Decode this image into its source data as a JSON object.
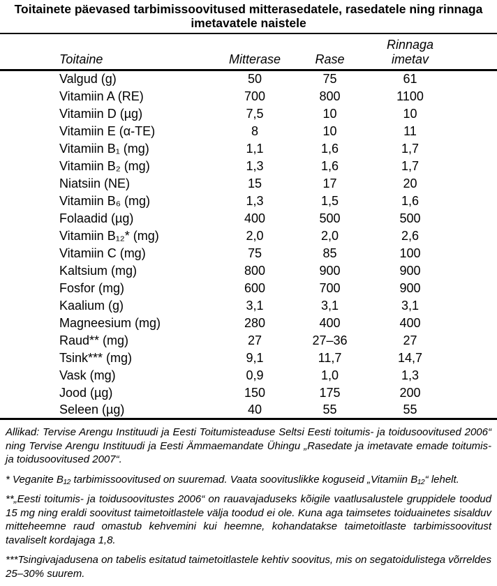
{
  "title": "Toitainete päevased tarbimissoovitused mitterasedatele, rasedatele ning rinnaga imetavatele naistele",
  "table": {
    "columns": [
      "Toitaine",
      "Mitterase",
      "Rase",
      "Rinnaga\nimetav"
    ],
    "rows": [
      {
        "toitaine": "Valgud (g)",
        "mitterase": "50",
        "rase": "75",
        "imetav": "61"
      },
      {
        "toitaine": "Vitamiin A (RE)",
        "mitterase": "700",
        "rase": "800",
        "imetav": "1100"
      },
      {
        "toitaine": "Vitamiin D (µg)",
        "mitterase": "7,5",
        "rase": "10",
        "imetav": "10"
      },
      {
        "toitaine": "Vitamiin E (α-TE)",
        "mitterase": "8",
        "rase": "10",
        "imetav": "11"
      },
      {
        "toitaine": "Vitamiin B₁ (mg)",
        "mitterase": "1,1",
        "rase": "1,6",
        "imetav": "1,7"
      },
      {
        "toitaine": "Vitamiin B₂ (mg)",
        "mitterase": "1,3",
        "rase": "1,6",
        "imetav": "1,7"
      },
      {
        "toitaine": "Niatsiin (NE)",
        "mitterase": "15",
        "rase": "17",
        "imetav": "20"
      },
      {
        "toitaine": "Vitamiin B₆ (mg)",
        "mitterase": "1,3",
        "rase": "1,5",
        "imetav": "1,6"
      },
      {
        "toitaine": "Folaadid (µg)",
        "mitterase": "400",
        "rase": "500",
        "imetav": "500"
      },
      {
        "toitaine": "Vitamiin B₁₂* (mg)",
        "mitterase": "2,0",
        "rase": "2,0",
        "imetav": "2,6"
      },
      {
        "toitaine": "Vitamiin C (mg)",
        "mitterase": "75",
        "rase": "85",
        "imetav": "100"
      },
      {
        "toitaine": "Kaltsium (mg)",
        "mitterase": "800",
        "rase": "900",
        "imetav": "900"
      },
      {
        "toitaine": "Fosfor (mg)",
        "mitterase": "600",
        "rase": "700",
        "imetav": "900"
      },
      {
        "toitaine": "Kaalium (g)",
        "mitterase": "3,1",
        "rase": "3,1",
        "imetav": "3,1"
      },
      {
        "toitaine": "Magneesium (mg)",
        "mitterase": "280",
        "rase": "400",
        "imetav": "400"
      },
      {
        "toitaine": "Raud** (mg)",
        "mitterase": "27",
        "rase": "27–36",
        "imetav": "27"
      },
      {
        "toitaine": "Tsink*** (mg)",
        "mitterase": "9,1",
        "rase": "11,7",
        "imetav": "14,7"
      },
      {
        "toitaine": "Vask (mg)",
        "mitterase": "0,9",
        "rase": "1,0",
        "imetav": "1,3"
      },
      {
        "toitaine": "Jood (µg)",
        "mitterase": "150",
        "rase": "175",
        "imetav": "200"
      },
      {
        "toitaine": "Seleen (µg)",
        "mitterase": "40",
        "rase": "55",
        "imetav": "55"
      }
    ]
  },
  "footnotes": [
    "Allikad: Tervise Arengu Instituudi ja Eesti Toitumisteaduse Seltsi Eesti toitumis- ja toidusoovitused 2006“ ning Tervise Arengu Instituudi ja Eesti Ämmaemandate Ühingu „Rasedate ja imetavate emade toitumis- ja toidusoovitused 2007“.",
    "* Veganite B₁₂ tarbimissoovitused on suuremad. Vaata soovituslikke koguseid „Vitamiin B₁₂“ lehelt.",
    "**„Eesti toitumis- ja toidusoovitustes 2006“ on rauavajaduseks kõigile vaatlusalustele gruppidele toodud 15 mg ning eraldi soovitust taimetoitlastele välja toodud ei ole. Kuna aga taimsetes toiduainetes sisalduv mitteheemne raud omastub kehvemini kui heemne, kohandatakse taimetoitlaste tarbimissoovitust tavaliselt kordajaga 1,8.",
    "***Tsingivajadusena on tabelis esitatud taimetoitlastele kehtiv soovitus, mis on segatoidulistega võrreldes 25–30% suurem."
  ]
}
